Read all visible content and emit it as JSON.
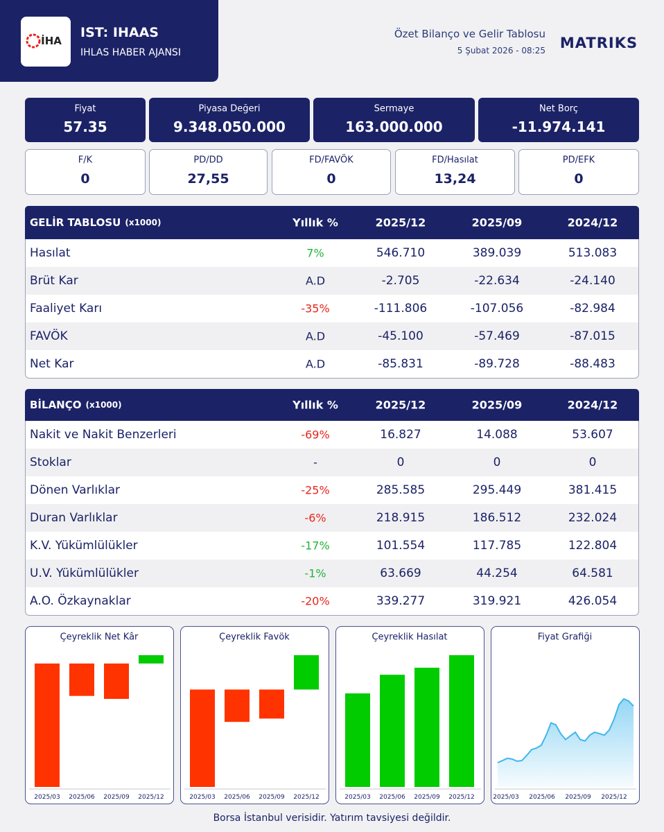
{
  "header": {
    "logo": "İHA",
    "ticker": "IST: IHAAS",
    "company": "IHLAS HABER AJANSI",
    "report_title": "Özet Bilanço ve Gelir Tablosu",
    "timestamp": "5 Şubat 2026 - 08:25",
    "brand": "MATRIKS"
  },
  "metrics": [
    {
      "label": "Fiyat",
      "value": "57.35"
    },
    {
      "label": "Piyasa Değeri",
      "value": "9.348.050.000"
    },
    {
      "label": "Sermaye",
      "value": "163.000.000"
    },
    {
      "label": "Net Borç",
      "value": "-11.974.141"
    }
  ],
  "ratios": [
    {
      "label": "F/K",
      "value": "0"
    },
    {
      "label": "PD/DD",
      "value": "27,55"
    },
    {
      "label": "FD/FAVÖK",
      "value": "0"
    },
    {
      "label": "FD/Hasılat",
      "value": "13,24"
    },
    {
      "label": "PD/EFK",
      "value": "0"
    }
  ],
  "income_statement": {
    "title": "GELİR TABLOSU",
    "unit": "(x1000)",
    "columns": [
      "Yıllık %",
      "2025/12",
      "2025/09",
      "2024/12"
    ],
    "rows": [
      {
        "label": "Hasılat",
        "change": "7%",
        "change_color": "#22b33a",
        "values": [
          "546.710",
          "389.039",
          "513.083"
        ]
      },
      {
        "label": "Brüt Kar",
        "change": "A.D",
        "change_color": "#1b2266",
        "values": [
          "-2.705",
          "-22.634",
          "-24.140"
        ]
      },
      {
        "label": "Faaliyet Karı",
        "change": "-35%",
        "change_color": "#e8251c",
        "values": [
          "-111.806",
          "-107.056",
          "-82.984"
        ]
      },
      {
        "label": "FAVÖK",
        "change": "A.D",
        "change_color": "#1b2266",
        "values": [
          "-45.100",
          "-57.469",
          "-87.015"
        ]
      },
      {
        "label": "Net Kar",
        "change": "A.D",
        "change_color": "#1b2266",
        "values": [
          "-85.831",
          "-89.728",
          "-88.483"
        ]
      }
    ]
  },
  "balance_sheet": {
    "title": "BİLANÇO",
    "unit": "(x1000)",
    "columns": [
      "Yıllık %",
      "2025/12",
      "2025/09",
      "2024/12"
    ],
    "rows": [
      {
        "label": "Nakit ve Nakit Benzerleri",
        "change": "-69%",
        "change_color": "#e8251c",
        "values": [
          "16.827",
          "14.088",
          "53.607"
        ]
      },
      {
        "label": "Stoklar",
        "change": "-",
        "change_color": "#1b2266",
        "values": [
          "0",
          "0",
          "0"
        ]
      },
      {
        "label": "Dönen Varlıklar",
        "change": "-25%",
        "change_color": "#e8251c",
        "values": [
          "285.585",
          "295.449",
          "381.415"
        ]
      },
      {
        "label": "Duran Varlıklar",
        "change": "-6%",
        "change_color": "#e8251c",
        "values": [
          "218.915",
          "186.512",
          "232.024"
        ]
      },
      {
        "label": "K.V. Yükümlülükler",
        "change": "-17%",
        "change_color": "#22b33a",
        "values": [
          "101.554",
          "117.785",
          "122.804"
        ]
      },
      {
        "label": "U.V. Yükümlülükler",
        "change": "-1%",
        "change_color": "#22b33a",
        "values": [
          "63.669",
          "44.254",
          "64.581"
        ]
      },
      {
        "label": "A.O. Özkaynaklar",
        "change": "-20%",
        "change_color": "#e8251c",
        "values": [
          "339.277",
          "319.921",
          "426.054"
        ]
      }
    ]
  },
  "chart_data": [
    {
      "type": "bar",
      "title": "Çeyreklik Net Kâr",
      "categories": [
        "2025/03",
        "2025/06",
        "2025/09",
        "2025/12"
      ],
      "values": [
        -57900,
        -15200,
        -16600,
        3900
      ],
      "positive_color": "#00cc00",
      "negative_color": "#ff3300"
    },
    {
      "type": "bar",
      "title": "Çeyreklik Favök",
      "categories": [
        "2025/03",
        "2025/06",
        "2025/09",
        "2025/12"
      ],
      "values": [
        -35200,
        -11700,
        -10500,
        12400
      ],
      "positive_color": "#00cc00",
      "negative_color": "#ff3300"
    },
    {
      "type": "bar",
      "title": "Çeyreklik Hasılat",
      "categories": [
        "2025/03",
        "2025/06",
        "2025/09",
        "2025/12"
      ],
      "values": [
        112000,
        134300,
        142700,
        157700
      ],
      "positive_color": "#00cc00",
      "negative_color": "#ff3300"
    },
    {
      "type": "line",
      "title": "Fiyat Grafiği",
      "x_labels": [
        "2025/03",
        "2025/06",
        "2025/09",
        "2025/12"
      ],
      "values": [
        22.4,
        23.7,
        25.1,
        24.6,
        23.3,
        23.7,
        26.9,
        30.5,
        31.4,
        33.2,
        39.4,
        47.0,
        45.7,
        40.3,
        36.7,
        39.0,
        41.2,
        36.7,
        35.8,
        39.4,
        41.2,
        40.3,
        39.4,
        42.6,
        49.3,
        58.2,
        61.8,
        60.5,
        57.35
      ],
      "color": "#3fb6ec"
    }
  ],
  "footer": "Borsa İstanbul verisidir. Yatırım tavsiyesi değildir."
}
